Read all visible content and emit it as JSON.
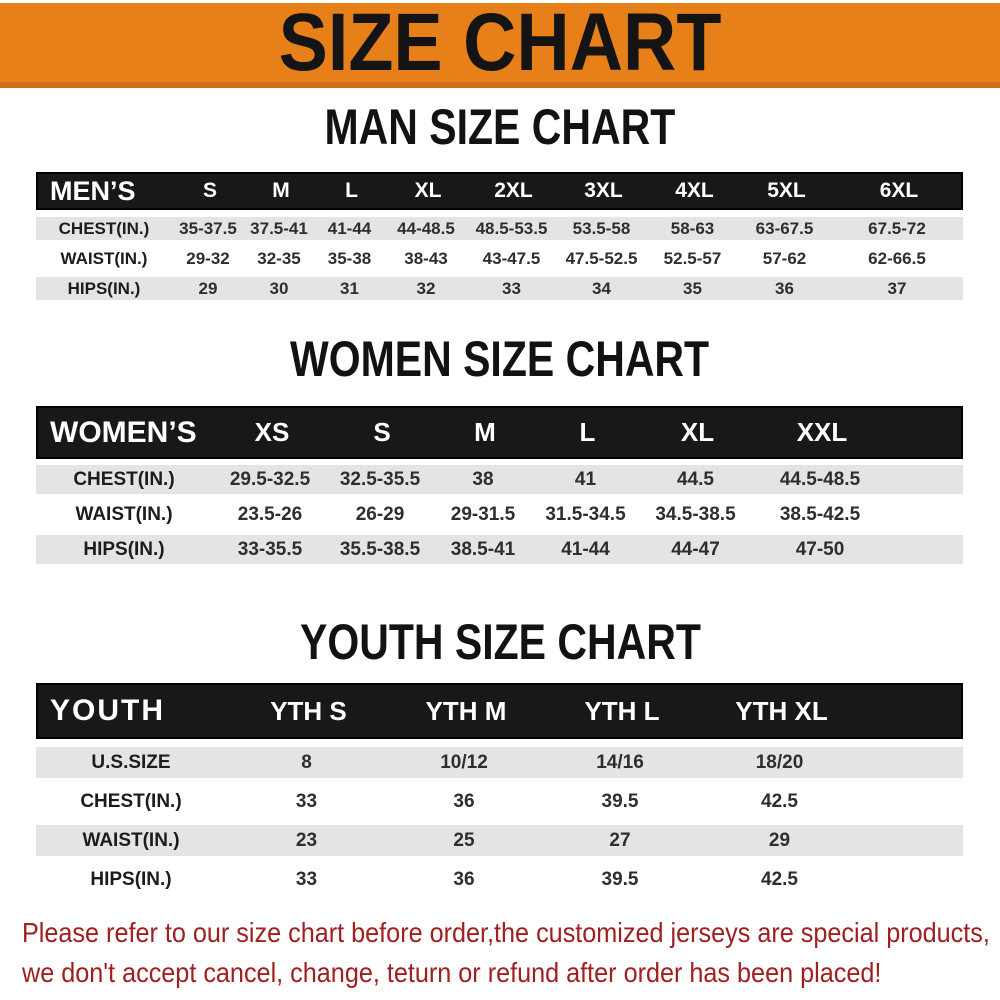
{
  "banner": {
    "title": "SIZE CHART",
    "bg_color": "#e8801a",
    "accent_color": "#cf6e12"
  },
  "sections": [
    {
      "heading": "MAN SIZE CHART",
      "table": {
        "header_label": "MEN’S",
        "columns": [
          "S",
          "M",
          "L",
          "XL",
          "2XL",
          "3XL",
          "4XL",
          "5XL",
          "6XL"
        ],
        "spacer_col": false,
        "rows": [
          {
            "label": "CHEST(IN.)",
            "values": [
              "35-37.5",
              "37.5-41",
              "41-44",
              "44-48.5",
              "48.5-53.5",
              "53.5-58",
              "58-63",
              "63-67.5",
              "67.5-72"
            ]
          },
          {
            "label": "WAIST(IN.)",
            "values": [
              "29-32",
              "32-35",
              "35-38",
              "38-43",
              "43-47.5",
              "47.5-52.5",
              "52.5-57",
              "57-62",
              "62-66.5"
            ]
          },
          {
            "label": "HIPS(IN.)",
            "values": [
              "29",
              "30",
              "31",
              "32",
              "33",
              "34",
              "35",
              "36",
              "37"
            ]
          }
        ]
      }
    },
    {
      "heading": "WOMEN SIZE CHART",
      "table": {
        "header_label": "WOMEN’S",
        "columns": [
          "XS",
          "S",
          "M",
          "L",
          "XL",
          "XXL"
        ],
        "spacer_col": true,
        "rows": [
          {
            "label": "CHEST(IN.)",
            "values": [
              "29.5-32.5",
              "32.5-35.5",
              "38",
              "41",
              "44.5",
              "44.5-48.5"
            ]
          },
          {
            "label": "WAIST(IN.)",
            "values": [
              "23.5-26",
              "26-29",
              "29-31.5",
              "31.5-34.5",
              "34.5-38.5",
              "38.5-42.5"
            ]
          },
          {
            "label": "HIPS(IN.)",
            "values": [
              "33-35.5",
              "35.5-38.5",
              "38.5-41",
              "41-44",
              "44-47",
              "47-50"
            ]
          }
        ]
      }
    },
    {
      "heading": "YOUTH SIZE CHART",
      "table": {
        "header_label": "YOUTH",
        "columns": [
          "YTH S",
          "YTH M",
          "YTH L",
          "YTH XL"
        ],
        "spacer_col": true,
        "rows": [
          {
            "label": "U.S.SIZE",
            "values": [
              "8",
              "10/12",
              "14/16",
              "18/20"
            ]
          },
          {
            "label": "CHEST(IN.)",
            "values": [
              "33",
              "36",
              "39.5",
              "42.5"
            ]
          },
          {
            "label": "WAIST(IN.)",
            "values": [
              "23",
              "25",
              "27",
              "29"
            ]
          },
          {
            "label": "HIPS(IN.)",
            "values": [
              "33",
              "36",
              "39.5",
              "42.5"
            ]
          }
        ]
      }
    }
  ],
  "footer": {
    "line1": "Please refer to our size chart before order,the customized jerseys are special products,",
    "line2": "we don't accept cancel, change, teturn or refund after order has been placed!"
  }
}
